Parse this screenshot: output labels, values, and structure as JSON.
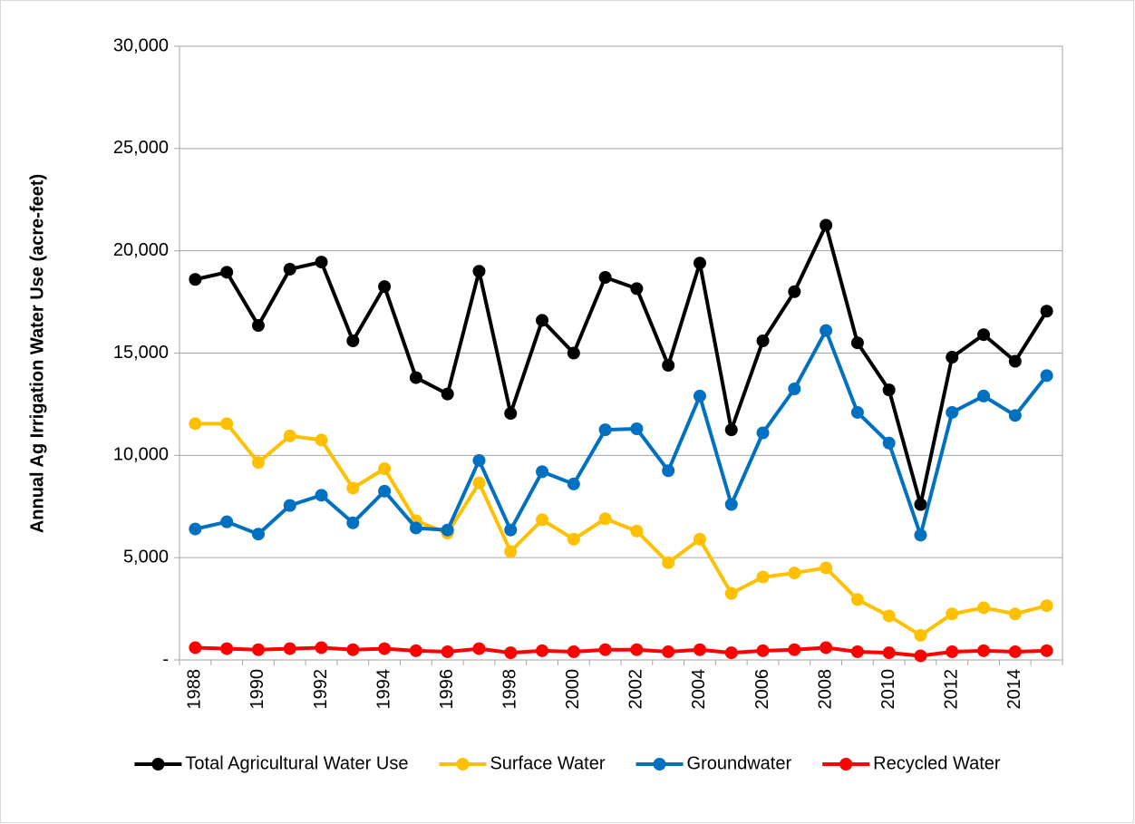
{
  "chart_data": {
    "type": "line",
    "ylabel": "Annual Ag Irrigation Water Use (acre-feet)",
    "categories": [
      "1988",
      null,
      "1990",
      null,
      "1992",
      null,
      "1994",
      null,
      "1996",
      null,
      "1998",
      null,
      "2000",
      null,
      "2002",
      null,
      "2004",
      null,
      "2006",
      null,
      "2008",
      null,
      "2010",
      null,
      "2012",
      null,
      "2014",
      null
    ],
    "series": [
      {
        "name": "Total Agricultural Water Use",
        "color": "#000000",
        "values": [
          18600,
          18950,
          16350,
          19100,
          19450,
          15600,
          18250,
          13800,
          13000,
          19000,
          12050,
          16600,
          15000,
          18700,
          18150,
          14400,
          19400,
          11250,
          15600,
          18000,
          21250,
          15500,
          13200,
          7600,
          14800,
          15900,
          14600,
          17050
        ]
      },
      {
        "name": "Surface Water",
        "color": "#ffc000",
        "values": [
          11550,
          11550,
          9650,
          10950,
          10750,
          8400,
          9350,
          6800,
          6200,
          8650,
          5300,
          6850,
          5900,
          6900,
          6300,
          4750,
          5900,
          3250,
          4050,
          4250,
          4500,
          2950,
          2150,
          1200,
          2250,
          2550,
          2250,
          2650
        ]
      },
      {
        "name": "Groundwater",
        "color": "#0070c0",
        "values": [
          6400,
          6750,
          6150,
          7550,
          8050,
          6700,
          8250,
          6450,
          6350,
          9750,
          6350,
          9200,
          8600,
          11250,
          11300,
          9250,
          12900,
          7600,
          11100,
          13250,
          16100,
          12100,
          10600,
          6100,
          12100,
          12900,
          11950,
          13900
        ]
      },
      {
        "name": "Recycled Water",
        "color": "#ff0000",
        "values": [
          600,
          550,
          500,
          550,
          600,
          500,
          550,
          450,
          400,
          550,
          350,
          450,
          400,
          500,
          500,
          400,
          500,
          350,
          450,
          500,
          600,
          400,
          350,
          200,
          400,
          450,
          400,
          450
        ]
      }
    ],
    "ylim": [
      0,
      30000
    ],
    "yticks": [
      {
        "value": 0,
        "label": "-"
      },
      {
        "value": 5000,
        "label": "5,000"
      },
      {
        "value": 10000,
        "label": "10,000"
      },
      {
        "value": 15000,
        "label": "15,000"
      },
      {
        "value": 20000,
        "label": "20,000"
      },
      {
        "value": 25000,
        "label": "25,000"
      },
      {
        "value": 30000,
        "label": "30,000"
      }
    ],
    "grid": true,
    "legend": "bottom"
  }
}
